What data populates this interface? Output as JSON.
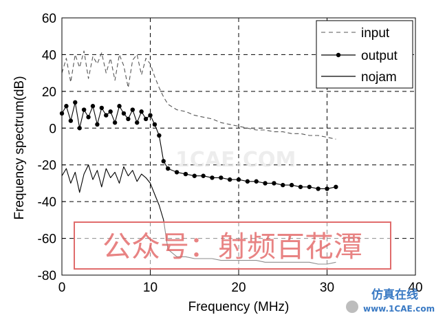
{
  "chart_data": {
    "type": "line",
    "xlabel": "Frequency (MHz)",
    "ylabel": "Frequency spectrum(dB)",
    "xlim": [
      0,
      40
    ],
    "ylim": [
      -80,
      60
    ],
    "xticks": [
      0,
      10,
      20,
      30,
      40
    ],
    "yticks": [
      60,
      40,
      20,
      0,
      -20,
      -40,
      -60,
      -80
    ],
    "grid": true,
    "legend_position": "top-right",
    "series": [
      {
        "name": "input",
        "style": "dashed",
        "color": "#555555",
        "x": [
          0.0,
          0.5,
          1.0,
          1.5,
          2.0,
          2.5,
          3.0,
          3.5,
          4.0,
          4.5,
          5.0,
          5.5,
          6.0,
          6.5,
          7.0,
          7.5,
          8.0,
          8.5,
          9.0,
          9.5,
          10.0,
          10.5,
          11.0,
          11.5,
          12.0,
          13.0,
          14.0,
          15.0,
          16.0,
          17.0,
          18.0,
          19.0,
          20.0,
          21.0,
          22.0,
          23.0,
          24.0,
          25.0,
          26.0,
          27.0,
          28.0,
          29.0,
          30.0,
          31.0
        ],
        "y": [
          30,
          38,
          25,
          40,
          33,
          42,
          27,
          39,
          35,
          41,
          30,
          38,
          26,
          40,
          34,
          22,
          37,
          40,
          29,
          38,
          35,
          28,
          22,
          17,
          13,
          10,
          9,
          7,
          6,
          5,
          3,
          2,
          1,
          0,
          -1,
          -1,
          -2,
          -2,
          -3,
          -3,
          -4,
          -4,
          -5,
          -6
        ]
      },
      {
        "name": "output",
        "style": "solid-with-dots",
        "color": "#000000",
        "x": [
          0.0,
          0.5,
          1.0,
          1.5,
          2.0,
          2.5,
          3.0,
          3.5,
          4.0,
          4.5,
          5.0,
          5.5,
          6.0,
          6.5,
          7.0,
          7.5,
          8.0,
          8.5,
          9.0,
          9.5,
          10.0,
          10.5,
          11.0,
          11.5,
          12.0,
          13.0,
          14.0,
          15.0,
          16.0,
          17.0,
          18.0,
          19.0,
          20.0,
          21.0,
          22.0,
          23.0,
          24.0,
          25.0,
          26.0,
          27.0,
          28.0,
          29.0,
          30.0,
          31.0
        ],
        "y": [
          8,
          12,
          4,
          14,
          0,
          10,
          6,
          12,
          2,
          11,
          7,
          9,
          3,
          12,
          8,
          5,
          10,
          3,
          9,
          5,
          7,
          2,
          -4,
          -18,
          -22,
          -24,
          -25,
          -26,
          -26,
          -27,
          -27,
          -28,
          -28,
          -29,
          -29,
          -30,
          -30,
          -31,
          -31,
          -32,
          -32,
          -33,
          -33,
          -32
        ]
      },
      {
        "name": "nojam",
        "style": "solid",
        "color": "#000000",
        "x": [
          0.0,
          0.5,
          1.0,
          1.5,
          2.0,
          2.5,
          3.0,
          3.5,
          4.0,
          4.5,
          5.0,
          5.5,
          6.0,
          6.5,
          7.0,
          7.5,
          8.0,
          8.5,
          9.0,
          9.5,
          10.0,
          10.5,
          11.0,
          11.5,
          12.0,
          13.0,
          14.0,
          15.0,
          16.0,
          17.0,
          18.0,
          19.0,
          20.0,
          21.0,
          22.0,
          23.0,
          24.0,
          25.0,
          26.0,
          27.0,
          28.0,
          29.0,
          30.0,
          31.0
        ],
        "y": [
          -26,
          -22,
          -30,
          -24,
          -35,
          -25,
          -20,
          -28,
          -23,
          -32,
          -22,
          -27,
          -24,
          -30,
          -21,
          -26,
          -23,
          -29,
          -25,
          -27,
          -30,
          -36,
          -42,
          -50,
          -66,
          -70,
          -70,
          -71,
          -71,
          -71,
          -72,
          -72,
          -72,
          -72,
          -72,
          -73,
          -73,
          -73,
          -73,
          -73,
          -73,
          -74,
          -74,
          -73
        ]
      }
    ]
  },
  "watermarks": {
    "center_text": "公众号：射频百花潭",
    "faint_text": "1CAE.COM",
    "corner_line1": "仿真在线",
    "corner_line2": "www.1CAE.com"
  }
}
